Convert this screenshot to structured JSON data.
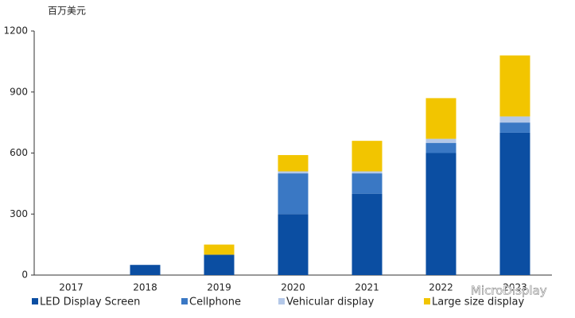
{
  "chart_data": {
    "type": "stacked-bar",
    "y_label": "百万美元",
    "categories": [
      "2017",
      "2018",
      "2019",
      "2020",
      "2021",
      "2022",
      "2023"
    ],
    "series": [
      {
        "name": "LED Display Screen",
        "color": "#0b4ea2",
        "values": [
          0,
          50,
          100,
          300,
          400,
          600,
          700
        ]
      },
      {
        "name": "Cellphone",
        "color": "#3a78c4",
        "values": [
          0,
          0,
          0,
          200,
          100,
          50,
          50
        ]
      },
      {
        "name": "Vehicular display",
        "color": "#b4c8e8",
        "values": [
          0,
          0,
          0,
          10,
          10,
          20,
          30
        ]
      },
      {
        "name": "Large size display",
        "color": "#f2c500",
        "values": [
          0,
          0,
          50,
          80,
          150,
          200,
          300
        ]
      }
    ],
    "ylim": [
      0,
      1200
    ],
    "yticks": [
      0,
      300,
      600,
      900,
      1200
    ],
    "grid": false,
    "legend": "bottom",
    "annotations": [
      "MicroDisplay"
    ]
  }
}
